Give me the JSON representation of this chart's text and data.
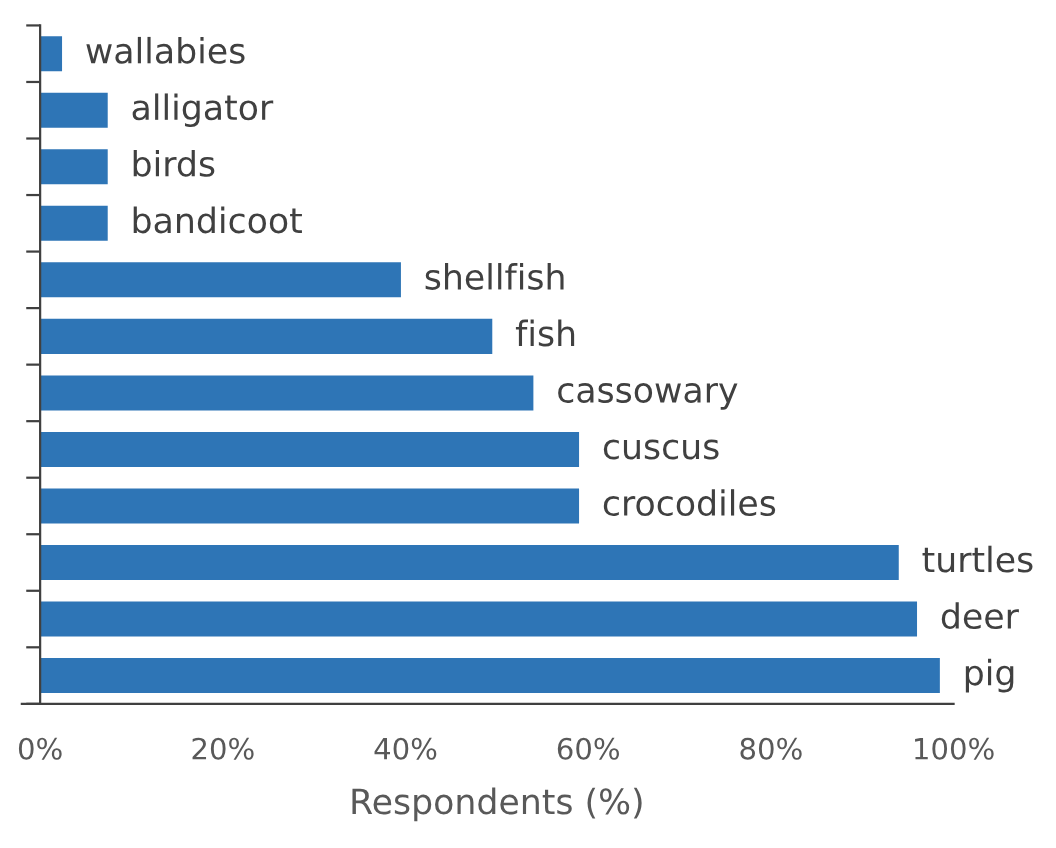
{
  "chart_data": {
    "type": "bar",
    "orientation": "horizontal",
    "xlabel": "Respondents (%)",
    "categories": [
      "wallabies",
      "alligator",
      "birds",
      "bandicoot",
      "shellfish",
      "fish",
      "cassowary",
      "cuscus",
      "crocodiles",
      "turtles",
      "deer",
      "pig"
    ],
    "values": [
      2.4,
      7.4,
      7.4,
      7.4,
      39.5,
      49.5,
      54,
      59,
      59,
      94,
      96,
      98.5
    ],
    "color": "#2e75b6",
    "xlim": [
      0,
      100
    ],
    "xticks": [
      {
        "value": 0,
        "label": "0%"
      },
      {
        "value": 20,
        "label": "20%"
      },
      {
        "value": 40,
        "label": "40%"
      },
      {
        "value": 60,
        "label": "60%"
      },
      {
        "value": 80,
        "label": "80%"
      },
      {
        "value": 100,
        "label": "100%"
      }
    ],
    "grid": false,
    "legend": false,
    "tick_labels": "x"
  }
}
